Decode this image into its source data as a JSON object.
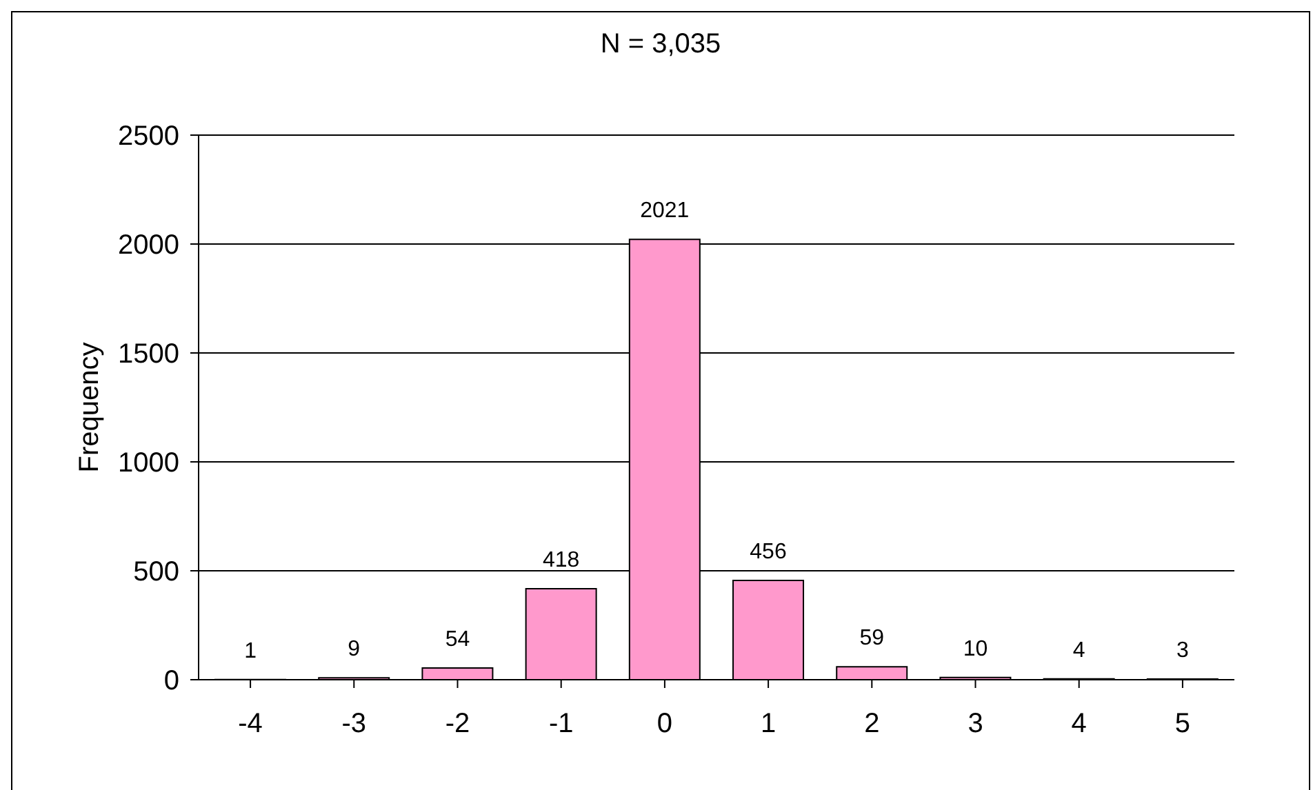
{
  "chart_data": {
    "type": "bar",
    "title": "N = 3,035",
    "ylabel": "Frequency",
    "categories": [
      "-4",
      "-3",
      "-2",
      "-1",
      "0",
      "1",
      "2",
      "3",
      "4",
      "5"
    ],
    "values": [
      1,
      9,
      54,
      418,
      2021,
      456,
      59,
      10,
      4,
      3
    ],
    "color": "#ff99cc",
    "ylim": [
      0,
      2500
    ],
    "yticks": [
      0,
      500,
      1000,
      1500,
      2000,
      2500
    ],
    "grid": "y",
    "data_labels": true
  }
}
